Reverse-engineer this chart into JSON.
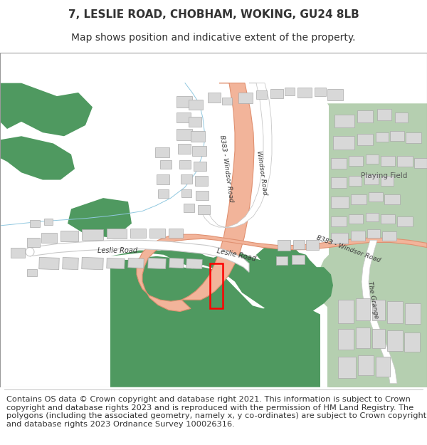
{
  "title_line1": "7, LESLIE ROAD, CHOBHAM, WOKING, GU24 8LB",
  "title_line2": "Map shows position and indicative extent of the property.",
  "footer": "Contains OS data © Crown copyright and database right 2021. This information is subject to Crown copyright and database rights 2023 and is reproduced with the permission of HM Land Registry. The polygons (including the associated geometry, namely x, y co-ordinates) are subject to Crown copyright and database rights 2023 Ordnance Survey 100026316.",
  "background_color": "#ffffff",
  "road_b383_color": "#f2b49a",
  "road_b383_edge": "#e09070",
  "road_white_color": "#ffffff",
  "road_white_edge": "#c8c8c8",
  "green_dark": "#4f9960",
  "green_light": "#b5cfb0",
  "building_fill": "#d8d8d8",
  "building_edge": "#aaaaaa",
  "water_color": "#aad4e8",
  "property_color": "#ff0000",
  "text_dark": "#333333",
  "title_fs": 11,
  "sub_fs": 10,
  "footer_fs": 8.2,
  "label_fs": 6.5
}
